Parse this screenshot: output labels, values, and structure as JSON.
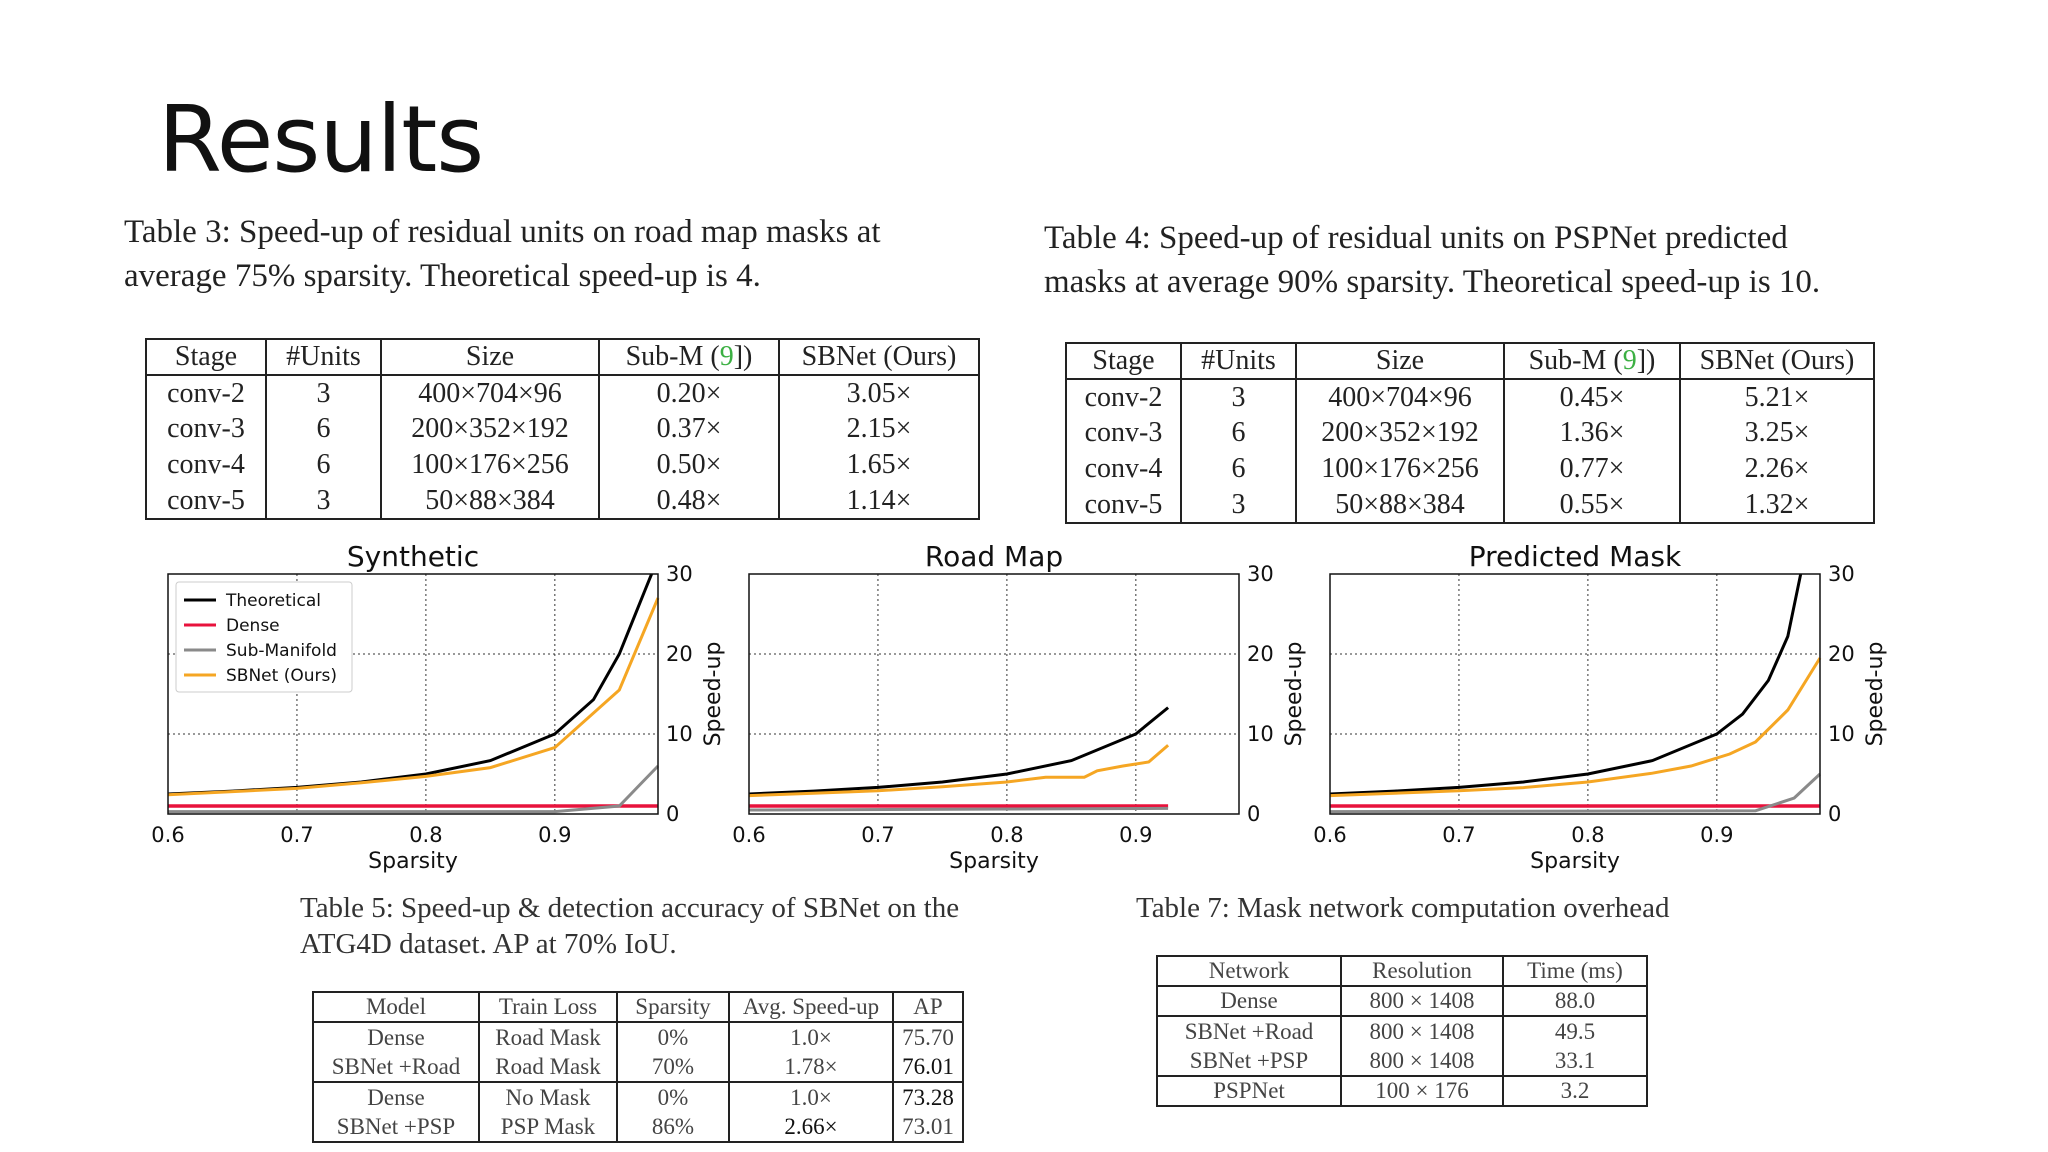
{
  "slide": {
    "title": "Results"
  },
  "table3": {
    "caption_line1": "Table 3:  Speed-up of residual units on road map masks at",
    "caption_line2": "average 75% sparsity.  Theoretical speed-up is 4.",
    "headers": [
      "Stage",
      "#Units",
      "Size",
      "Sub-M (",
      "9",
      "])",
      "SBNet (Ours)"
    ],
    "rows": [
      [
        "conv-2",
        "3",
        "400×704×96",
        "0.20×",
        "3.05×"
      ],
      [
        "conv-3",
        "6",
        "200×352×192",
        "0.37×",
        "2.15×"
      ],
      [
        "conv-4",
        "6",
        "100×176×256",
        "0.50×",
        "1.65×"
      ],
      [
        "conv-5",
        "3",
        "50×88×384",
        "0.48×",
        "1.14×"
      ]
    ]
  },
  "table4": {
    "caption_line1": "Table 4:  Speed-up of residual units on PSPNet predicted",
    "caption_line2": "masks at average 90% sparsity.  Theoretical speed-up is 10.",
    "headers": [
      "Stage",
      "#Units",
      "Size",
      "Sub-M (",
      "9",
      "])",
      "SBNet (Ours)"
    ],
    "rows": [
      [
        "conv-2",
        "3",
        "400×704×96",
        "0.45×",
        "5.21×"
      ],
      [
        "conv-3",
        "6",
        "200×352×192",
        "1.36×",
        "3.25×"
      ],
      [
        "conv-4",
        "6",
        "100×176×256",
        "0.77×",
        "2.26×"
      ],
      [
        "conv-5",
        "3",
        "50×88×384",
        "0.55×",
        "1.32×"
      ]
    ]
  },
  "table5": {
    "caption_line1": "Table 5:  Speed-up & detection accuracy of SBNet on the",
    "caption_line2": "ATG4D dataset.  AP at 70% IoU.",
    "headers": [
      "Model",
      "Train Loss",
      "Sparsity",
      "Avg. Speed-up",
      "AP"
    ],
    "rows": [
      [
        "Dense",
        "Road Mask",
        "0%",
        "1.0×",
        "75.70"
      ],
      [
        "SBNet +Road",
        "Road Mask",
        "70%",
        "1.78×",
        "76.01"
      ],
      [
        "Dense",
        "No Mask",
        "0%",
        "1.0×",
        "73.28"
      ],
      [
        "SBNet +PSP",
        "PSP Mask",
        "86%",
        "2.66×",
        "73.01"
      ]
    ]
  },
  "table7": {
    "caption": "Table 7: Mask network computation overhead",
    "headers": [
      "Network",
      "Resolution",
      "Time (ms)"
    ],
    "rows": [
      [
        "Dense",
        "800 × 1408",
        "88.0"
      ],
      [
        "SBNet +Road",
        "800 × 1408",
        "49.5"
      ],
      [
        "SBNet +PSP",
        "800 × 1408",
        "33.1"
      ],
      [
        "PSPNet",
        "100 × 176",
        "3.2"
      ]
    ]
  },
  "colors": {
    "theoretical": "#000000",
    "dense": "#e8123c",
    "submanifold": "#8a8a8a",
    "sbnet": "#f5a623"
  },
  "chart_data": [
    {
      "type": "line",
      "title": "Synthetic",
      "xlabel": "Sparsity",
      "ylabel": "Speed-up",
      "xlim": [
        0.6,
        0.98
      ],
      "ylim": [
        0,
        30
      ],
      "xticks": [
        "0.6",
        "0.7",
        "0.8",
        "0.9"
      ],
      "yticks": [
        "0",
        "10",
        "20",
        "30"
      ],
      "grid": true,
      "legend": [
        "Theoretical",
        "Dense",
        "Sub-Manifold",
        "SBNet (Ours)"
      ],
      "legend_position": "top-left",
      "series": [
        {
          "name": "Theoretical",
          "x": [
            0.6,
            0.65,
            0.7,
            0.75,
            0.8,
            0.85,
            0.9,
            0.93,
            0.95,
            0.97,
            0.975
          ],
          "y": [
            2.5,
            2.86,
            3.33,
            4.0,
            5.0,
            6.67,
            10.0,
            14.3,
            20.0,
            28.0,
            30
          ]
        },
        {
          "name": "Dense",
          "x": [
            0.6,
            0.98
          ],
          "y": [
            1.0,
            1.0
          ]
        },
        {
          "name": "Sub-Manifold",
          "x": [
            0.6,
            0.9,
            0.95,
            0.98
          ],
          "y": [
            0.3,
            0.3,
            1.0,
            6.0
          ]
        },
        {
          "name": "SBNet (Ours)",
          "x": [
            0.6,
            0.65,
            0.7,
            0.75,
            0.8,
            0.85,
            0.9,
            0.95,
            0.98
          ],
          "y": [
            2.4,
            2.8,
            3.2,
            3.9,
            4.7,
            5.8,
            8.3,
            15.5,
            27
          ]
        }
      ]
    },
    {
      "type": "line",
      "title": "Road Map",
      "xlabel": "Sparsity",
      "ylabel": "Speed-up",
      "xlim": [
        0.6,
        0.98
      ],
      "ylim": [
        0,
        30
      ],
      "xticks": [
        "0.6",
        "0.7",
        "0.8",
        "0.9"
      ],
      "yticks": [
        "0",
        "10",
        "20",
        "30"
      ],
      "grid": true,
      "series": [
        {
          "name": "Theoretical",
          "x": [
            0.6,
            0.65,
            0.7,
            0.75,
            0.8,
            0.85,
            0.9,
            0.925
          ],
          "y": [
            2.5,
            2.86,
            3.33,
            4.0,
            5.0,
            6.67,
            10.0,
            13.3
          ]
        },
        {
          "name": "Dense",
          "x": [
            0.6,
            0.925
          ],
          "y": [
            1.0,
            1.0
          ]
        },
        {
          "name": "Sub-Manifold",
          "x": [
            0.6,
            0.925
          ],
          "y": [
            0.5,
            0.7
          ]
        },
        {
          "name": "SBNet (Ours)",
          "x": [
            0.6,
            0.65,
            0.7,
            0.75,
            0.8,
            0.83,
            0.86,
            0.87,
            0.89,
            0.91,
            0.925
          ],
          "y": [
            2.3,
            2.6,
            2.9,
            3.4,
            4.0,
            4.6,
            4.6,
            5.4,
            6.0,
            6.5,
            8.6
          ]
        }
      ]
    },
    {
      "type": "line",
      "title": "Predicted Mask",
      "xlabel": "Sparsity",
      "ylabel": "Speed-up",
      "xlim": [
        0.6,
        0.98
      ],
      "ylim": [
        0,
        30
      ],
      "xticks": [
        "0.6",
        "0.7",
        "0.8",
        "0.9"
      ],
      "yticks": [
        "0",
        "10",
        "20",
        "30"
      ],
      "grid": true,
      "series": [
        {
          "name": "Theoretical",
          "x": [
            0.6,
            0.65,
            0.7,
            0.75,
            0.8,
            0.85,
            0.9,
            0.92,
            0.94,
            0.955,
            0.965
          ],
          "y": [
            2.5,
            2.86,
            3.33,
            4.0,
            5.0,
            6.67,
            10.0,
            12.5,
            16.7,
            22.2,
            30
          ]
        },
        {
          "name": "Dense",
          "x": [
            0.6,
            0.98
          ],
          "y": [
            1.0,
            1.0
          ]
        },
        {
          "name": "Sub-Manifold",
          "x": [
            0.6,
            0.93,
            0.96,
            0.98
          ],
          "y": [
            0.3,
            0.4,
            2.0,
            5.0
          ]
        },
        {
          "name": "SBNet (Ours)",
          "x": [
            0.6,
            0.65,
            0.7,
            0.75,
            0.8,
            0.85,
            0.88,
            0.91,
            0.93,
            0.955,
            0.98
          ],
          "y": [
            2.3,
            2.6,
            2.9,
            3.3,
            4.0,
            5.1,
            6.0,
            7.5,
            9.0,
            13.0,
            19.5
          ]
        }
      ]
    }
  ]
}
